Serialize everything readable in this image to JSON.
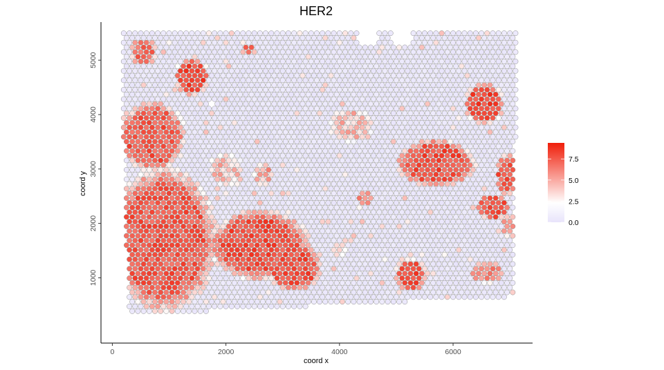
{
  "chart_data": {
    "type": "scatter",
    "title": "HER2",
    "xlabel": "coord x",
    "ylabel": "coord y",
    "xlim": [
      -200,
      7400
    ],
    "ylim": [
      -200,
      5700
    ],
    "x_ticks": [
      0,
      2000,
      4000,
      6000
    ],
    "x_tick_labels": [
      "0",
      "2000",
      "4000",
      "6000"
    ],
    "y_ticks": [
      1000,
      2000,
      3000,
      4000,
      5000
    ],
    "y_tick_labels": [
      "1000",
      "2000",
      "3000",
      "4000",
      "5000"
    ],
    "grid": false,
    "legend": {
      "position": "right",
      "type": "colorbar",
      "min": 0,
      "max": 9.4,
      "ticks": [
        0,
        2.5,
        5,
        7.5
      ],
      "tick_labels": [
        "0.0",
        "2.5",
        "5.0",
        "7.5"
      ],
      "colors": {
        "low": "#e8e4fb",
        "mid": "#ffffff",
        "high": "#f01e0a",
        "midpoint": 2.3
      }
    },
    "spot_grid": {
      "x_start": 100,
      "x_end": 7100,
      "x_step": 100,
      "y_start": 300,
      "y_end": 5500,
      "y_step": 86.6
    },
    "regions": [
      {
        "center": [
          900,
          1700
        ],
        "radii": [
          950,
          1350
        ],
        "value": 8.5
      },
      {
        "center": [
          700,
          3600
        ],
        "radii": [
          600,
          650
        ],
        "value": 8.5
      },
      {
        "center": [
          2600,
          1600
        ],
        "radii": [
          900,
          650
        ],
        "value": 8.8
      },
      {
        "center": [
          3200,
          1200
        ],
        "radii": [
          500,
          450
        ],
        "value": 8.8
      },
      {
        "center": [
          1400,
          4700
        ],
        "radii": [
          300,
          350
        ],
        "value": 9.0
      },
      {
        "center": [
          550,
          5150
        ],
        "radii": [
          250,
          250
        ],
        "value": 8.0
      },
      {
        "center": [
          2000,
          3000
        ],
        "radii": [
          300,
          300
        ],
        "value": 5.0
      },
      {
        "center": [
          5700,
          3100
        ],
        "radii": [
          700,
          450
        ],
        "value": 8.8
      },
      {
        "center": [
          6550,
          4200
        ],
        "radii": [
          350,
          380
        ],
        "value": 9.0
      },
      {
        "center": [
          6950,
          2900
        ],
        "radii": [
          200,
          400
        ],
        "value": 8.5
      },
      {
        "center": [
          6700,
          2300
        ],
        "radii": [
          300,
          250
        ],
        "value": 8.5
      },
      {
        "center": [
          7000,
          1950
        ],
        "radii": [
          150,
          200
        ],
        "value": 7.0
      },
      {
        "center": [
          5250,
          1050
        ],
        "radii": [
          280,
          300
        ],
        "value": 8.8
      },
      {
        "center": [
          6600,
          1100
        ],
        "radii": [
          300,
          200
        ],
        "value": 7.0
      },
      {
        "center": [
          4200,
          3800
        ],
        "radii": [
          400,
          300
        ],
        "value": 5.0
      },
      {
        "center": [
          2650,
          2900
        ],
        "radii": [
          170,
          200
        ],
        "value": 6.0
      },
      {
        "center": [
          4000,
          1500
        ],
        "radii": [
          150,
          150
        ],
        "value": 3.5
      },
      {
        "center": [
          5900,
          500
        ],
        "radii": [
          250,
          120
        ],
        "value": 5.5
      },
      {
        "center": [
          4450,
          2450
        ],
        "radii": [
          150,
          150
        ],
        "value": 7.0
      },
      {
        "center": [
          2400,
          5200
        ],
        "radii": [
          120,
          120
        ],
        "value": 8.0
      }
    ]
  }
}
